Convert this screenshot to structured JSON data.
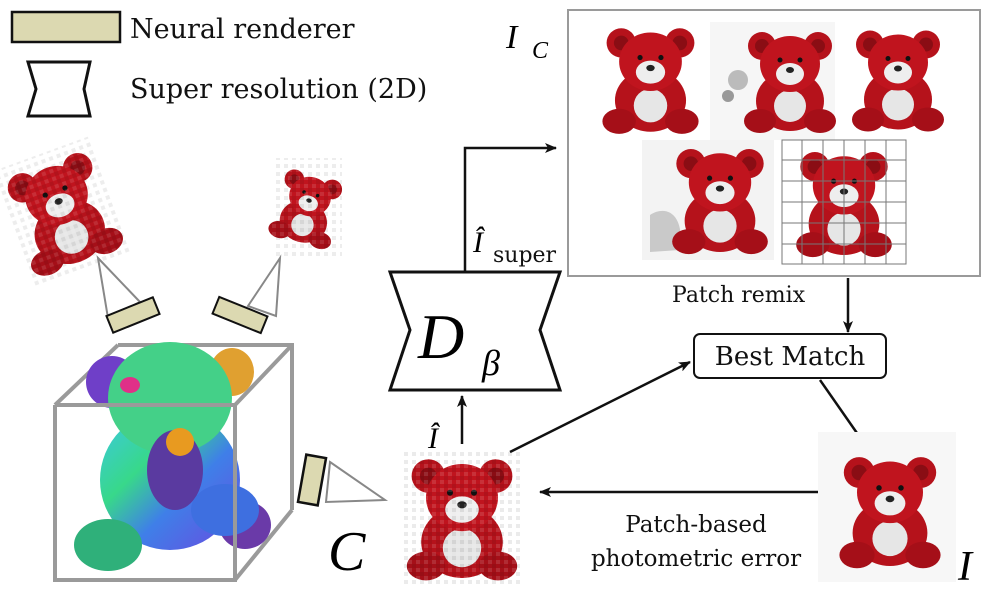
{
  "legend": {
    "neural_renderer": "Neural renderer",
    "super_resolution": "Super resolution (2D)"
  },
  "labels": {
    "ic_main": "I",
    "ic_sub": "C",
    "d_main": "D",
    "d_sub": "β",
    "i_super_main": "Î",
    "i_super_sub": "super",
    "i_hat": "Î",
    "c": "C",
    "i": "I",
    "patch_remix": "Patch remix",
    "best_match": "Best Match",
    "error_line1": "Patch-based",
    "error_line2": "photometric error"
  },
  "colors": {
    "renderer_fill": "#dcd9b1",
    "bear_red": "#b5121b",
    "bear_white": "#e6e6e6",
    "box_gray": "#9a9a9a",
    "arrow": "#111111"
  },
  "icons": [
    "camera-icon",
    "renderer-block-icon",
    "super-resolution-icon",
    "teddy-bear-image"
  ]
}
